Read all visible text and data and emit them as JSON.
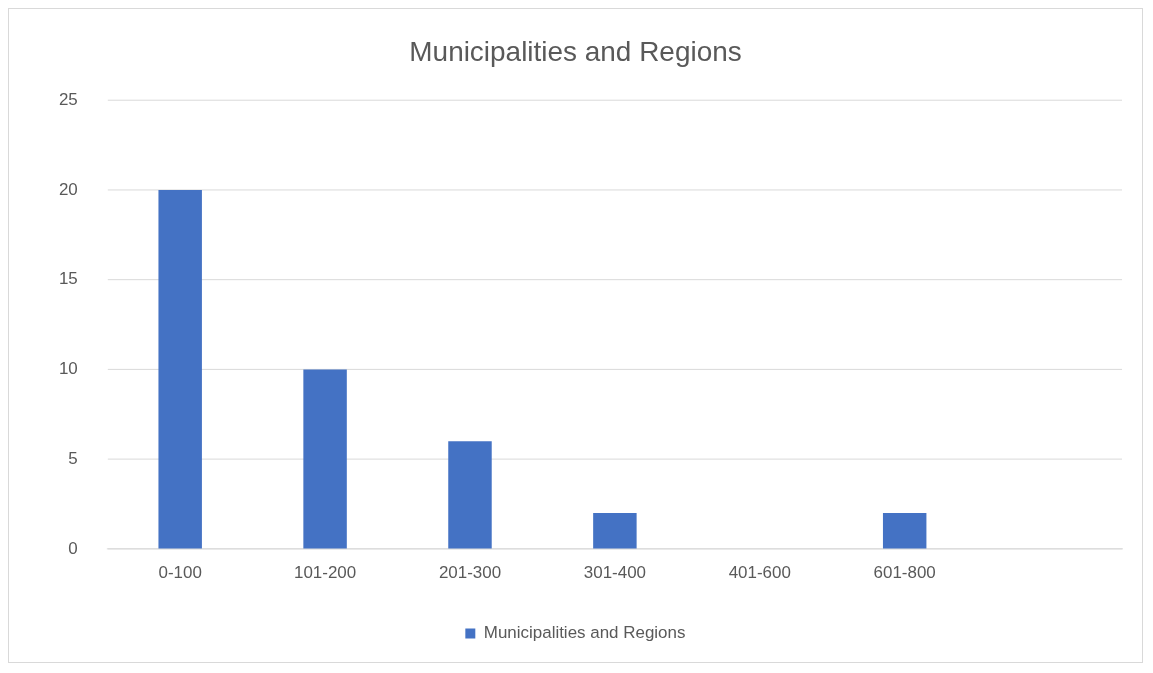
{
  "chart_data": {
    "type": "bar",
    "title": "Municipalities and Regions",
    "categories": [
      "0-100",
      "101-200",
      "201-300",
      "301-400",
      "401-600",
      "601-800",
      null
    ],
    "series": [
      {
        "name": "Municipalities and Regions",
        "color": "#4472c4",
        "values": [
          20,
          10,
          6,
          2,
          0,
          2,
          null
        ]
      }
    ],
    "ylim": [
      0,
      25
    ],
    "yticks": [
      0,
      5,
      10,
      15,
      20,
      25
    ],
    "grid": "y",
    "legend": "bottom"
  }
}
